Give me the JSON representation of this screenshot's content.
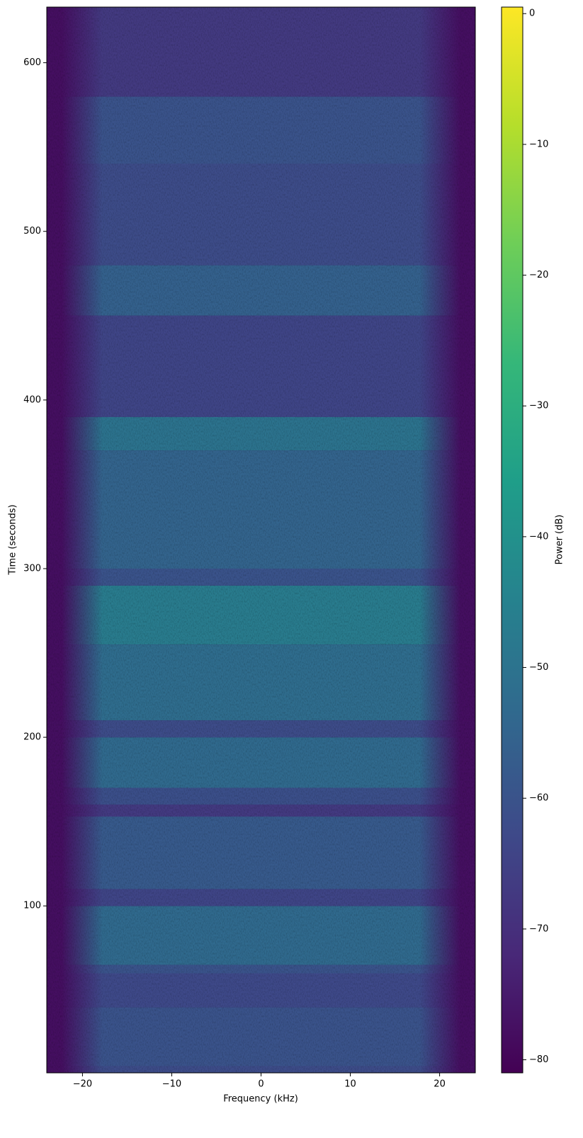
{
  "chart_data": {
    "type": "spectrogram",
    "xlabel": "Frequency (kHz)",
    "ylabel": "Time (seconds)",
    "colorbar_label": "Power (dB)",
    "colormap": "viridis",
    "xlim": [
      -24,
      24
    ],
    "ylim": [
      1,
      633
    ],
    "clim": [
      -81,
      0.5
    ],
    "xticks": [
      {
        "value": -20,
        "label": "−20"
      },
      {
        "value": -10,
        "label": "−10"
      },
      0,
      10,
      20
    ],
    "yticks": [
      100,
      200,
      300,
      400,
      500,
      600
    ],
    "cticks": [
      0,
      {
        "value": -10,
        "label": "−10"
      },
      {
        "value": -20,
        "label": "−20"
      },
      {
        "value": -30,
        "label": "−30"
      },
      {
        "value": -40,
        "label": "−40"
      },
      {
        "value": -50,
        "label": "−50"
      },
      {
        "value": -60,
        "label": "−60"
      },
      {
        "value": -70,
        "label": "−70"
      },
      {
        "value": -80,
        "label": "−80"
      }
    ],
    "time_edges": [
      1,
      5,
      40,
      60,
      65,
      100,
      110,
      153,
      160,
      170,
      200,
      210,
      255,
      290,
      300,
      370,
      390,
      450,
      480,
      540,
      580,
      633
    ],
    "power": [
      -62,
      -60,
      -63,
      -60,
      -53,
      -64,
      -58,
      -67,
      -61,
      -53,
      -62,
      -52,
      -47,
      -60,
      -55,
      -50,
      -64,
      -56,
      -62,
      -60,
      -67
    ]
  }
}
